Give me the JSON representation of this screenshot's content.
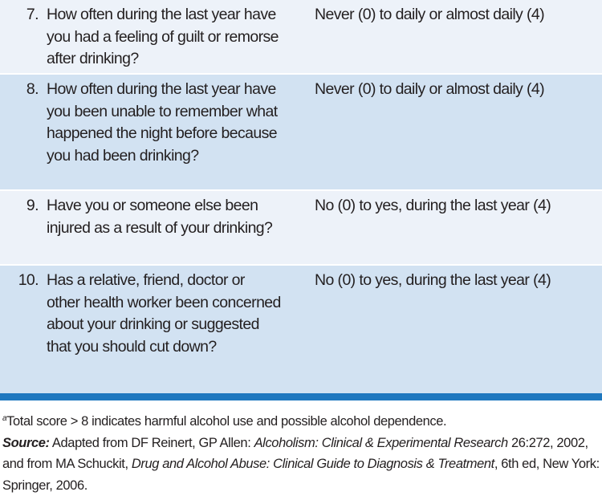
{
  "table": {
    "rows": [
      {
        "number": "7.",
        "question": "How often during the last year have you had a feeling of guilt or remorse after drinking?",
        "answer": "Never (0) to daily or almost daily (4)"
      },
      {
        "number": "8.",
        "question": "How often during the last year have you been unable to remember what happened the night before because you had been drinking?",
        "answer": "Never (0) to daily or almost daily (4)"
      },
      {
        "number": "9.",
        "question": "Have you or someone else been injured as a result of your drinking?",
        "answer": "No (0) to yes, during the last year (4)"
      },
      {
        "number": "10.",
        "question": "Has a relative, friend, doctor or other health worker been concerned about your drinking or suggested that you should cut down?",
        "answer": "No (0) to yes, during the last year (4)"
      }
    ]
  },
  "footnote": {
    "marker": "a",
    "text": "Total score > 8 indicates harmful alcohol use and possible alcohol dependence."
  },
  "source": {
    "label": "Source:",
    "part1": " Adapted from DF Reinert, GP Allen: ",
    "title1": "Alcoholism: Clinical & Experimental Research",
    "part2": " 26:272, 2002, and from MA Schuckit, ",
    "title2": "Drug and Alcohol Abuse: Clinical Guide to Diagnosis & Treatment",
    "part3": ", 6th ed, New York: Springer, 2006."
  }
}
